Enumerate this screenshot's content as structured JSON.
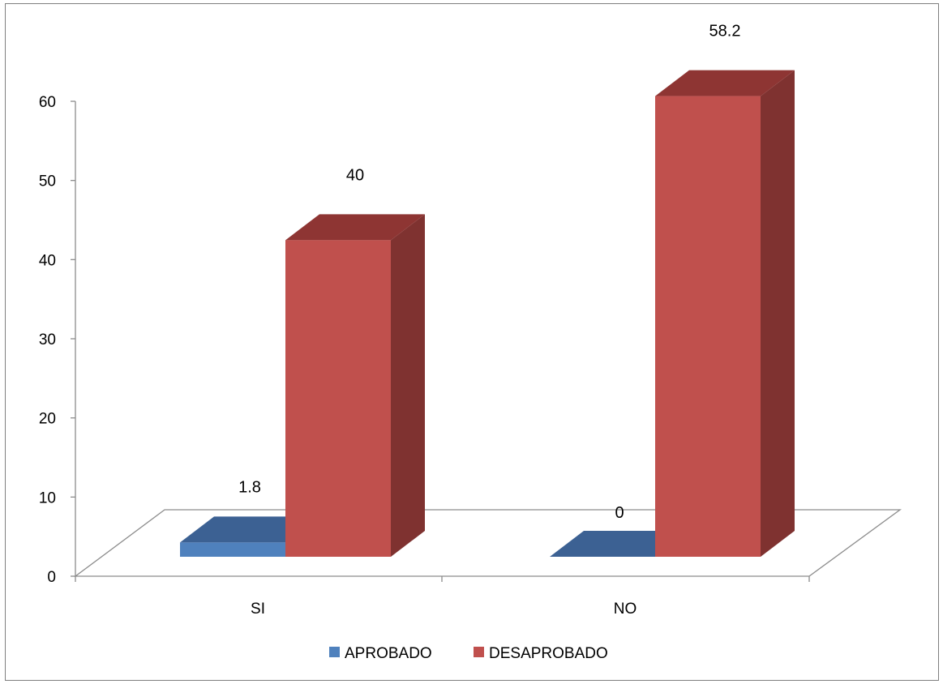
{
  "chart_data": {
    "type": "bar",
    "categories": [
      "SI",
      "NO"
    ],
    "series": [
      {
        "name": "APROBADO",
        "values": [
          1.8,
          0
        ],
        "color": "#4f81bd",
        "top_color": "#3c6193",
        "side_color": "#345580"
      },
      {
        "name": "DESAPROBADO",
        "values": [
          40,
          58.2
        ],
        "color": "#c0504d",
        "top_color": "#8e3533",
        "side_color": "#7f3230"
      }
    ],
    "data_labels": [
      "1.8",
      "40",
      "0",
      "58.2"
    ],
    "y_ticks": [
      "0",
      "10",
      "20",
      "30",
      "40",
      "50",
      "60"
    ],
    "ylim": [
      0,
      60
    ],
    "legend_position": "bottom",
    "three_d": true,
    "grid": false
  }
}
